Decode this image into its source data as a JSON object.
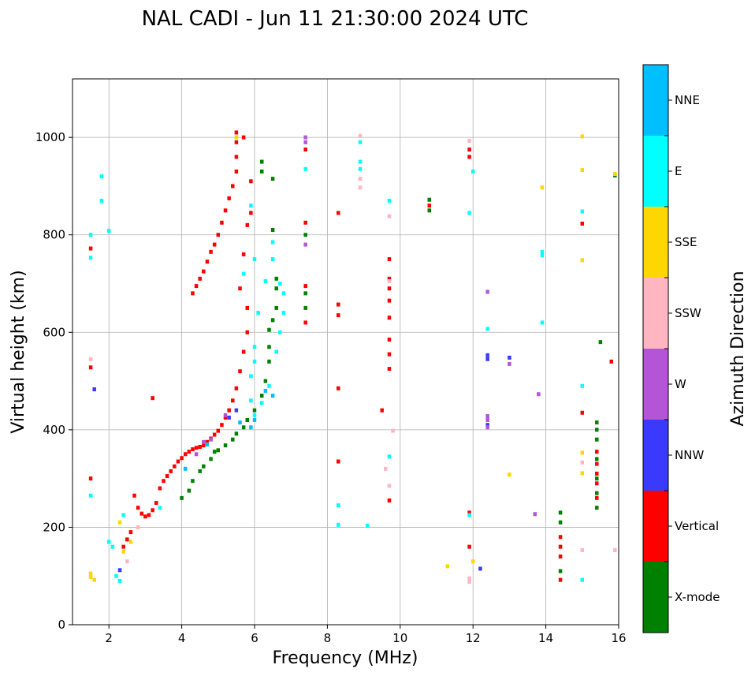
{
  "chart_data": {
    "type": "scatter",
    "title": "NAL CADI - Jun 11 21:30:00 2024 UTC",
    "xlabel": "Frequency (MHz)",
    "ylabel": "Virtual height (km)",
    "xlim": [
      1,
      16
    ],
    "ylim": [
      0,
      1120
    ],
    "xticks": [
      2,
      4,
      6,
      8,
      10,
      12,
      14,
      16
    ],
    "yticks": [
      0,
      200,
      400,
      600,
      800,
      1000
    ],
    "grid": true,
    "colorbar": {
      "label": "Azimuth Direction",
      "entries": [
        {
          "name": "X-mode",
          "color": "#008000"
        },
        {
          "name": "Vertical",
          "color": "#ff0000"
        },
        {
          "name": "NNW",
          "color": "#3a3aff"
        },
        {
          "name": "W",
          "color": "#b455d8"
        },
        {
          "name": "SSW",
          "color": "#ffb6c1"
        },
        {
          "name": "SSE",
          "color": "#ffd700"
        },
        {
          "name": "E",
          "color": "#00ffff"
        },
        {
          "name": "NNE",
          "color": "#00bfff"
        }
      ]
    },
    "series": [
      {
        "name": "Vertical",
        "color": "#ff0000",
        "points": [
          [
            1.5,
            300
          ],
          [
            1.5,
            528
          ],
          [
            1.5,
            772
          ],
          [
            2.4,
            160
          ],
          [
            2.5,
            175
          ],
          [
            2.6,
            190
          ],
          [
            2.7,
            265
          ],
          [
            2.8,
            240
          ],
          [
            2.9,
            228
          ],
          [
            3.0,
            222
          ],
          [
            3.1,
            225
          ],
          [
            3.2,
            235
          ],
          [
            3.3,
            250
          ],
          [
            3.4,
            280
          ],
          [
            3.5,
            295
          ],
          [
            3.6,
            305
          ],
          [
            3.7,
            315
          ],
          [
            3.8,
            325
          ],
          [
            3.9,
            335
          ],
          [
            4.0,
            342
          ],
          [
            4.1,
            350
          ],
          [
            4.2,
            355
          ],
          [
            4.3,
            360
          ],
          [
            4.4,
            363
          ],
          [
            4.5,
            365
          ],
          [
            4.6,
            368
          ],
          [
            4.7,
            375
          ],
          [
            4.8,
            382
          ],
          [
            4.9,
            390
          ],
          [
            5.0,
            398
          ],
          [
            5.1,
            410
          ],
          [
            5.2,
            425
          ],
          [
            5.3,
            440
          ],
          [
            5.4,
            460
          ],
          [
            5.5,
            485
          ],
          [
            5.6,
            520
          ],
          [
            5.7,
            560
          ],
          [
            5.8,
            600
          ],
          [
            3.2,
            465
          ],
          [
            4.3,
            680
          ],
          [
            4.4,
            695
          ],
          [
            4.5,
            710
          ],
          [
            4.6,
            725
          ],
          [
            4.7,
            745
          ],
          [
            4.8,
            765
          ],
          [
            4.9,
            780
          ],
          [
            5.0,
            800
          ],
          [
            5.1,
            825
          ],
          [
            5.2,
            850
          ],
          [
            5.3,
            875
          ],
          [
            5.4,
            900
          ],
          [
            5.5,
            930
          ],
          [
            5.5,
            960
          ],
          [
            5.5,
            990
          ],
          [
            5.5,
            1010
          ],
          [
            5.7,
            1000
          ],
          [
            5.9,
            910
          ],
          [
            5.9,
            845
          ],
          [
            5.8,
            820
          ],
          [
            5.7,
            760
          ],
          [
            5.6,
            690
          ],
          [
            5.8,
            650
          ],
          [
            7.4,
            620
          ],
          [
            7.4,
            695
          ],
          [
            7.4,
            825
          ],
          [
            7.4,
            975
          ],
          [
            8.3,
            845
          ],
          [
            8.3,
            657
          ],
          [
            8.3,
            635
          ],
          [
            8.3,
            485
          ],
          [
            8.3,
            335
          ],
          [
            9.5,
            440
          ],
          [
            9.7,
            750
          ],
          [
            9.7,
            710
          ],
          [
            9.7,
            690
          ],
          [
            9.7,
            665
          ],
          [
            9.7,
            630
          ],
          [
            9.7,
            585
          ],
          [
            9.7,
            555
          ],
          [
            9.7,
            525
          ],
          [
            9.7,
            255
          ],
          [
            10.8,
            860
          ],
          [
            11.9,
            975
          ],
          [
            11.9,
            960
          ],
          [
            11.9,
            230
          ],
          [
            11.9,
            160
          ],
          [
            15.0,
            823
          ],
          [
            15.0,
            435
          ],
          [
            15.4,
            355
          ],
          [
            15.4,
            330
          ],
          [
            15.4,
            310
          ],
          [
            15.4,
            290
          ],
          [
            15.4,
            260
          ],
          [
            15.8,
            540
          ],
          [
            14.4,
            180
          ],
          [
            14.4,
            160
          ],
          [
            14.4,
            140
          ],
          [
            14.4,
            92
          ]
        ]
      },
      {
        "name": "X-mode",
        "color": "#008000",
        "points": [
          [
            4.0,
            260
          ],
          [
            4.2,
            275
          ],
          [
            4.3,
            295
          ],
          [
            4.5,
            315
          ],
          [
            4.6,
            325
          ],
          [
            4.8,
            340
          ],
          [
            4.9,
            355
          ],
          [
            5.0,
            358
          ],
          [
            5.2,
            368
          ],
          [
            5.4,
            380
          ],
          [
            5.5,
            392
          ],
          [
            5.7,
            405
          ],
          [
            5.8,
            420
          ],
          [
            6.0,
            440
          ],
          [
            6.2,
            470
          ],
          [
            6.3,
            500
          ],
          [
            6.4,
            540
          ],
          [
            6.4,
            570
          ],
          [
            6.4,
            605
          ],
          [
            6.5,
            625
          ],
          [
            6.6,
            650
          ],
          [
            6.6,
            690
          ],
          [
            6.6,
            710
          ],
          [
            6.5,
            810
          ],
          [
            6.5,
            915
          ],
          [
            6.2,
            930
          ],
          [
            6.2,
            950
          ],
          [
            7.4,
            650
          ],
          [
            7.4,
            680
          ],
          [
            7.4,
            800
          ],
          [
            10.8,
            850
          ],
          [
            10.8,
            872
          ],
          [
            14.4,
            210
          ],
          [
            14.4,
            230
          ],
          [
            14.4,
            110
          ],
          [
            15.4,
            240
          ],
          [
            15.4,
            270
          ],
          [
            15.4,
            300
          ],
          [
            15.4,
            340
          ],
          [
            15.4,
            380
          ],
          [
            15.4,
            400
          ],
          [
            15.4,
            415
          ],
          [
            15.5,
            580
          ],
          [
            15.9,
            922
          ]
        ]
      },
      {
        "name": "NNW",
        "color": "#3a3aff",
        "points": [
          [
            1.6,
            483
          ],
          [
            2.3,
            112
          ],
          [
            12.4,
            545
          ],
          [
            12.4,
            553
          ],
          [
            12.4,
            410
          ],
          [
            12.2,
            115
          ],
          [
            13.0,
            548
          ],
          [
            5.3,
            425
          ],
          [
            5.5,
            440
          ]
        ]
      },
      {
        "name": "W",
        "color": "#b455d8",
        "points": [
          [
            12.4,
            420
          ],
          [
            12.4,
            428
          ],
          [
            12.4,
            405
          ],
          [
            12.4,
            683
          ],
          [
            13.0,
            535
          ],
          [
            13.8,
            473
          ],
          [
            13.7,
            227
          ],
          [
            7.4,
            990
          ],
          [
            7.4,
            780
          ],
          [
            7.4,
            1000
          ],
          [
            5.2,
            430
          ],
          [
            4.6,
            375
          ],
          [
            4.8,
            380
          ],
          [
            4.4,
            350
          ]
        ]
      },
      {
        "name": "SSW",
        "color": "#ffb6c1",
        "points": [
          [
            1.5,
            545
          ],
          [
            2.8,
            200
          ],
          [
            8.9,
            1003
          ],
          [
            8.9,
            897
          ],
          [
            8.9,
            915
          ],
          [
            9.6,
            320
          ],
          [
            9.7,
            838
          ],
          [
            9.8,
            398
          ],
          [
            11.9,
            993
          ],
          [
            11.9,
            95
          ],
          [
            11.9,
            88
          ],
          [
            15.0,
            153
          ],
          [
            15.9,
            153
          ],
          [
            15.0,
            333
          ],
          [
            9.7,
            705
          ],
          [
            9.7,
            285
          ],
          [
            2.5,
            130
          ]
        ]
      },
      {
        "name": "SSE",
        "color": "#ffd700",
        "points": [
          [
            1.5,
            105
          ],
          [
            1.5,
            98
          ],
          [
            1.6,
            92
          ],
          [
            2.3,
            210
          ],
          [
            2.4,
            150
          ],
          [
            2.6,
            170
          ],
          [
            11.3,
            120
          ],
          [
            12.0,
            130
          ],
          [
            13.0,
            308
          ],
          [
            13.9,
            897
          ],
          [
            15.0,
            933
          ],
          [
            15.0,
            1002
          ],
          [
            15.0,
            748
          ],
          [
            15.0,
            353
          ],
          [
            15.0,
            311
          ],
          [
            5.5,
            1000
          ],
          [
            15.9,
            925
          ]
        ]
      },
      {
        "name": "E",
        "color": "#00ffff",
        "points": [
          [
            1.5,
            800
          ],
          [
            1.5,
            753
          ],
          [
            1.5,
            265
          ],
          [
            1.8,
            920
          ],
          [
            1.8,
            870
          ],
          [
            2.0,
            808
          ],
          [
            2.0,
            170
          ],
          [
            2.2,
            100
          ],
          [
            2.3,
            90
          ],
          [
            2.1,
            160
          ],
          [
            2.4,
            225
          ],
          [
            3.4,
            240
          ],
          [
            5.9,
            460
          ],
          [
            6.0,
            430
          ],
          [
            6.2,
            455
          ],
          [
            6.4,
            490
          ],
          [
            6.6,
            560
          ],
          [
            6.7,
            600
          ],
          [
            6.8,
            640
          ],
          [
            6.8,
            680
          ],
          [
            6.7,
            700
          ],
          [
            6.5,
            750
          ],
          [
            6.5,
            785
          ],
          [
            6.3,
            705
          ],
          [
            6.1,
            640
          ],
          [
            6.0,
            570
          ],
          [
            6.0,
            540
          ],
          [
            5.9,
            510
          ],
          [
            5.7,
            720
          ],
          [
            5.9,
            860
          ],
          [
            6.0,
            750
          ],
          [
            7.4,
            935
          ],
          [
            8.3,
            245
          ],
          [
            8.3,
            205
          ],
          [
            8.9,
            990
          ],
          [
            8.9,
            950
          ],
          [
            8.9,
            935
          ],
          [
            9.1,
            203
          ],
          [
            9.7,
            870
          ],
          [
            9.7,
            345
          ],
          [
            12.0,
            930
          ],
          [
            12.4,
            607
          ],
          [
            13.9,
            765
          ],
          [
            13.9,
            758
          ],
          [
            13.9,
            620
          ],
          [
            15.0,
            848
          ],
          [
            15.0,
            490
          ],
          [
            15.0,
            92
          ],
          [
            11.9,
            845
          ],
          [
            11.9,
            225
          ]
        ]
      },
      {
        "name": "NNE",
        "color": "#00bfff",
        "points": [
          [
            5.9,
            405
          ],
          [
            6.0,
            420
          ],
          [
            6.3,
            480
          ],
          [
            6.5,
            470
          ],
          [
            5.6,
            415
          ],
          [
            4.1,
            320
          ],
          [
            4.7,
            370
          ]
        ]
      }
    ]
  }
}
